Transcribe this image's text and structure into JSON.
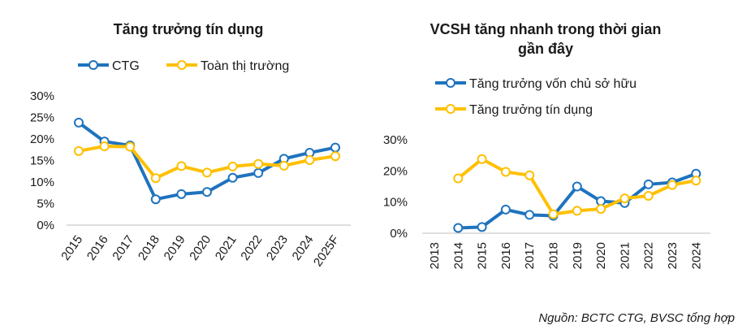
{
  "colors": {
    "blue": "#1E73BE",
    "yellow": "#FFC000"
  },
  "source_note": "Nguồn: BCTC CTG, BVSC tổng hợp",
  "chart_data": [
    {
      "type": "line",
      "title": "Tăng trưởng tín dụng",
      "categories": [
        "2015",
        "2016",
        "2017",
        "2018",
        "2019",
        "2020",
        "2021",
        "2022",
        "2023",
        "2024",
        "2025F"
      ],
      "y_ticks": [
        "30%",
        "25%",
        "20%",
        "15%",
        "10%",
        "5%",
        "0%"
      ],
      "ylim": [
        0,
        30
      ],
      "y_unit": "%",
      "legend_position": "top",
      "series": [
        {
          "name": "CTG",
          "color": "#1E73BE",
          "values": [
            23.8,
            19.4,
            18.5,
            6.0,
            7.2,
            7.7,
            11.0,
            12.1,
            15.4,
            16.8,
            18.0
          ]
        },
        {
          "name": "Toàn thị trường",
          "color": "#FFC000",
          "values": [
            17.2,
            18.3,
            18.2,
            10.9,
            13.7,
            12.2,
            13.6,
            14.2,
            13.8,
            15.1,
            16.0
          ]
        }
      ]
    },
    {
      "type": "line",
      "title_lines": [
        "VCSH tăng nhanh trong thời gian",
        "gần đây"
      ],
      "categories": [
        "2013",
        "2014",
        "2015",
        "2016",
        "2017",
        "2018",
        "2019",
        "2020",
        "2021",
        "2022",
        "2023",
        "2024"
      ],
      "y_ticks": [
        "30%",
        "20%",
        "10%",
        "0%"
      ],
      "ylim": [
        0,
        30
      ],
      "y_unit": "%",
      "legend_position": "top-left",
      "series": [
        {
          "name": "Tăng trưởng vốn chủ sở hữu",
          "color": "#1E73BE",
          "values": [
            null,
            1.7,
            2.0,
            7.6,
            5.9,
            5.6,
            15.0,
            10.3,
            9.7,
            15.7,
            16.3,
            19.1
          ]
        },
        {
          "name": "Tăng trưởng tín dụng",
          "color": "#FFC000",
          "values": [
            null,
            17.6,
            23.8,
            19.7,
            18.6,
            6.1,
            7.2,
            7.8,
            11.2,
            12.0,
            15.5,
            16.9
          ]
        }
      ]
    }
  ]
}
